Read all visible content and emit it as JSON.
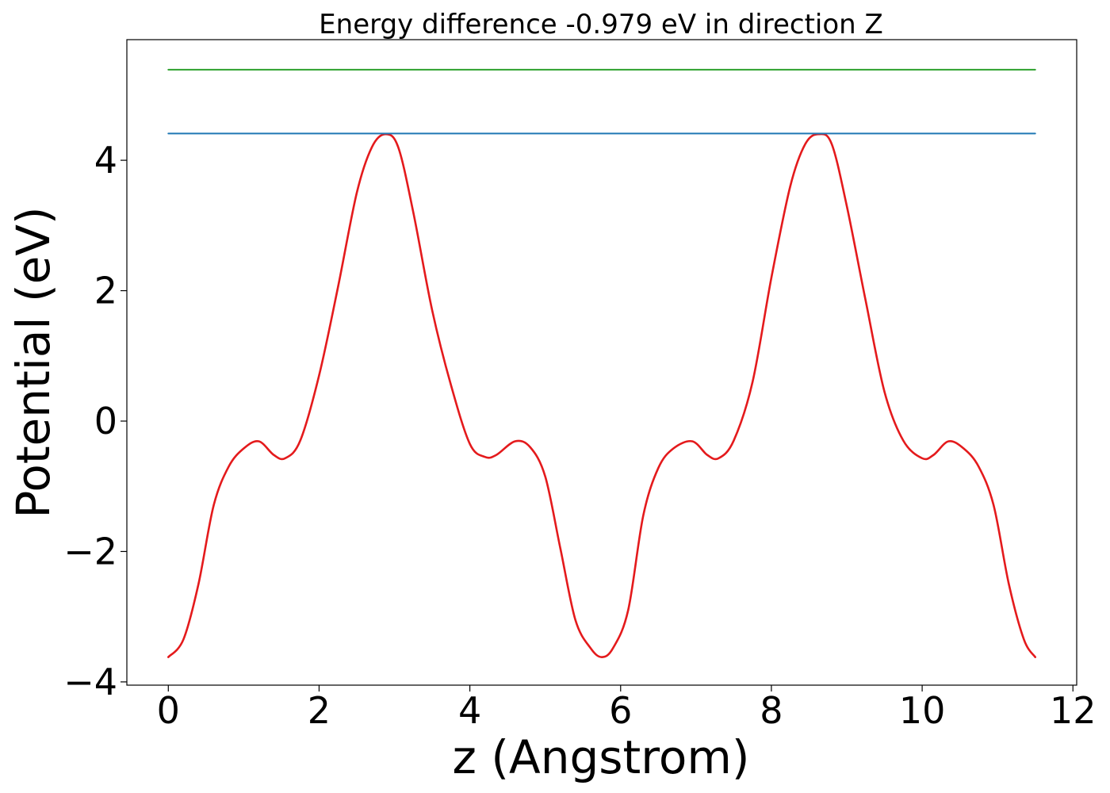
{
  "chart_data": {
    "type": "line",
    "title": "Energy difference -0.979 eV in direction Z",
    "xlabel": "z (Angstrom)",
    "ylabel": "Potential (eV)",
    "xlim": [
      -0.55,
      12.05
    ],
    "ylim": [
      -4.05,
      5.85
    ],
    "xticks": [
      0,
      2,
      4,
      6,
      8,
      10,
      12
    ],
    "xtick_labels": [
      "0",
      "2",
      "4",
      "6",
      "8",
      "10",
      "12"
    ],
    "yticks": [
      -4,
      -2,
      0,
      2,
      4
    ],
    "ytick_labels": [
      "−4",
      "−2",
      "0",
      "2",
      "4"
    ],
    "grid": false,
    "legend": "none",
    "series": [
      {
        "color": "#e41a1c",
        "x": [
          0.0,
          0.2,
          0.4,
          0.6,
          0.8,
          1.0,
          1.2,
          1.4,
          1.55,
          1.75,
          2.0,
          2.25,
          2.5,
          2.7,
          2.88,
          3.05,
          3.25,
          3.5,
          3.75,
          4.0,
          4.2,
          4.35,
          4.6,
          4.8,
          5.0,
          5.2,
          5.4,
          5.6,
          5.75,
          5.9,
          6.1,
          6.3,
          6.5,
          6.7,
          6.95,
          7.15,
          7.3,
          7.5,
          7.75,
          8.0,
          8.25,
          8.45,
          8.63,
          8.8,
          9.0,
          9.25,
          9.5,
          9.75,
          10.0,
          10.15,
          10.35,
          10.55,
          10.75,
          10.95,
          11.15,
          11.35,
          11.5
        ],
        "y": [
          -3.62,
          -3.35,
          -2.5,
          -1.3,
          -0.7,
          -0.42,
          -0.31,
          -0.52,
          -0.57,
          -0.3,
          0.7,
          2.05,
          3.5,
          4.2,
          4.4,
          4.2,
          3.2,
          1.7,
          0.55,
          -0.35,
          -0.55,
          -0.52,
          -0.31,
          -0.4,
          -0.85,
          -1.95,
          -3.05,
          -3.48,
          -3.62,
          -3.48,
          -2.9,
          -1.45,
          -0.72,
          -0.42,
          -0.31,
          -0.52,
          -0.57,
          -0.3,
          0.6,
          2.2,
          3.6,
          4.25,
          4.4,
          4.25,
          3.3,
          1.85,
          0.45,
          -0.3,
          -0.57,
          -0.52,
          -0.31,
          -0.42,
          -0.7,
          -1.3,
          -2.5,
          -3.35,
          -3.62
        ]
      },
      {
        "color": "#1f77b4",
        "x": [
          0.0,
          11.5
        ],
        "y": [
          4.41,
          4.41
        ]
      },
      {
        "color": "#2ca02c",
        "x": [
          0.0,
          11.5
        ],
        "y": [
          5.39,
          5.39
        ]
      }
    ]
  }
}
